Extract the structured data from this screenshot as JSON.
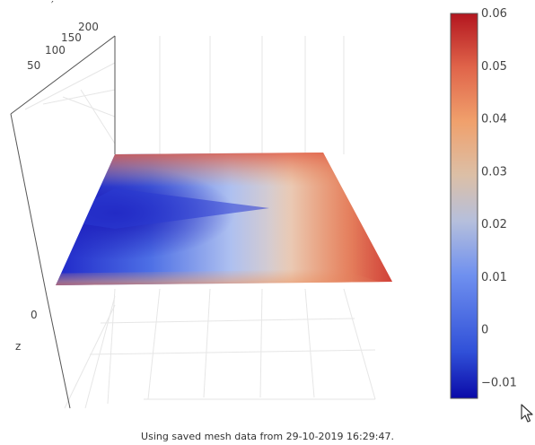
{
  "plot": {
    "y_ticks": [
      "50",
      "100",
      "150",
      "200"
    ],
    "y_title": "′",
    "z_tick": "0",
    "z_title": "z"
  },
  "colorbar": {
    "min": -0.013,
    "max": 0.06,
    "ticks": [
      "0.06",
      "0.05",
      "0.04",
      "0.03",
      "0.02",
      "0.01",
      "0",
      "−0.01"
    ],
    "tick_values": [
      0.06,
      0.05,
      0.04,
      0.03,
      0.02,
      0.01,
      0,
      -0.01
    ],
    "colors": [
      "#1a19c2",
      "#4568e3",
      "#7c9ef5",
      "#b9c3db",
      "#dfbaa0",
      "#f2a06d",
      "#e3654a",
      "#b3161f"
    ]
  },
  "status": {
    "text": "Using saved mesh data from 29-10-2019 16:29:47."
  }
}
